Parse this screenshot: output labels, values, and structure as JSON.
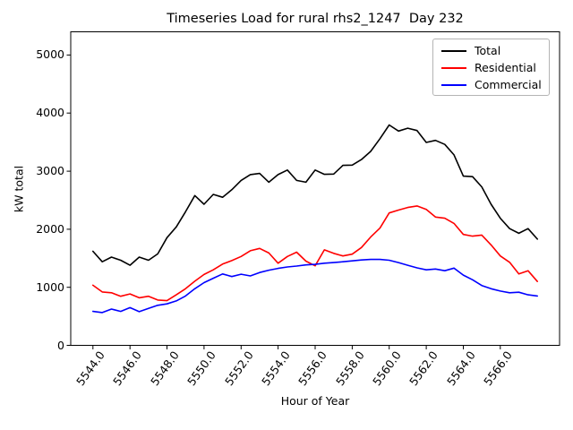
{
  "chart_data": {
    "type": "line",
    "title": "Timeseries Load for rural rhs2_1247  Day 232",
    "xlabel": "Hour of Year",
    "ylabel": "kW total",
    "xlim": [
      5542.8,
      5569.2
    ],
    "ylim": [
      0,
      5400
    ],
    "grid": false,
    "legend_position": "upper right",
    "xticks": [
      5544,
      5546,
      5548,
      5550,
      5552,
      5554,
      5556,
      5558,
      5560,
      5562,
      5564,
      5566
    ],
    "yticks": [
      0,
      1000,
      2000,
      3000,
      4000,
      5000
    ],
    "x": [
      5544,
      5544.5,
      5545,
      5545.5,
      5546,
      5546.5,
      5547,
      5547.5,
      5548,
      5548.5,
      5549,
      5549.5,
      5550,
      5550.5,
      5551,
      5551.5,
      5552,
      5552.5,
      5553,
      5553.5,
      5554,
      5554.5,
      5555,
      5555.5,
      5556,
      5556.5,
      5557,
      5557.5,
      5558,
      5558.5,
      5559,
      5559.5,
      5560,
      5560.5,
      5561,
      5561.5,
      5562,
      5562.5,
      5563,
      5563.5,
      5564,
      5564.5,
      5565,
      5565.5,
      5566,
      5566.5,
      5567,
      5567.5,
      5568
    ],
    "series": [
      {
        "name": "Total",
        "color": "#000000",
        "values": [
          1620,
          1440,
          1520,
          1465,
          1380,
          1520,
          1465,
          1575,
          1855,
          2040,
          2300,
          2580,
          2430,
          2600,
          2550,
          2680,
          2840,
          2940,
          2960,
          2810,
          2940,
          3020,
          2840,
          2810,
          3020,
          2945,
          2950,
          3100,
          3105,
          3200,
          3340,
          3560,
          3795,
          3690,
          3740,
          3700,
          3495,
          3530,
          3460,
          3280,
          2915,
          2905,
          2730,
          2430,
          2190,
          2010,
          1930,
          2010,
          1830
        ]
      },
      {
        "name": "Residential",
        "color": "#ff0000",
        "values": [
          1035,
          920,
          905,
          845,
          885,
          820,
          845,
          780,
          770,
          870,
          975,
          1105,
          1220,
          1300,
          1400,
          1460,
          1530,
          1630,
          1670,
          1590,
          1415,
          1530,
          1605,
          1450,
          1370,
          1645,
          1585,
          1540,
          1570,
          1685,
          1865,
          2020,
          2280,
          2330,
          2375,
          2400,
          2340,
          2210,
          2190,
          2100,
          1910,
          1880,
          1900,
          1730,
          1540,
          1430,
          1230,
          1285,
          1100
        ]
      },
      {
        "name": "Commercial",
        "color": "#0000ff",
        "values": [
          585,
          565,
          625,
          585,
          650,
          580,
          635,
          690,
          715,
          765,
          850,
          975,
          1080,
          1155,
          1230,
          1185,
          1225,
          1195,
          1255,
          1295,
          1325,
          1350,
          1365,
          1385,
          1395,
          1415,
          1425,
          1440,
          1455,
          1470,
          1480,
          1480,
          1465,
          1425,
          1380,
          1335,
          1300,
          1315,
          1285,
          1330,
          1210,
          1130,
          1030,
          975,
          935,
          905,
          915,
          870,
          850
        ]
      }
    ]
  }
}
